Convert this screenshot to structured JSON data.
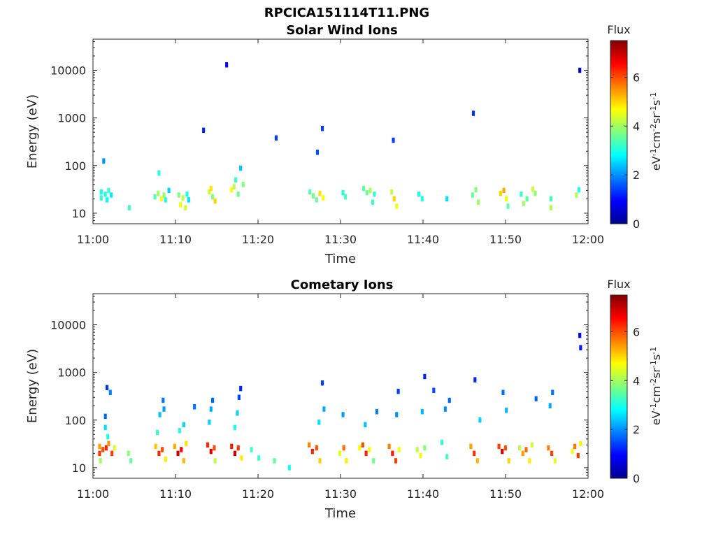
{
  "figure_title": "RPCICA151114T11.PNG",
  "chart_data": [
    {
      "type": "heatmap",
      "title": "Solar Wind Ions",
      "xlabel": "Time",
      "ylabel": "Energy (eV)",
      "x_range": [
        "11:00",
        "12:00"
      ],
      "x_ticks": [
        "11:00",
        "11:10",
        "11:20",
        "11:30",
        "11:40",
        "11:50",
        "12:00"
      ],
      "y_scale": "log",
      "y_range": [
        6,
        45000
      ],
      "y_ticks": [
        "10",
        "100",
        "1000",
        "10000"
      ],
      "colorbar": {
        "label": "Flux",
        "units": "eV-1cm-2sr-1s-1",
        "ticks": [
          "0",
          "2",
          "4",
          "6"
        ],
        "range": [
          0,
          7.5
        ],
        "colormap": "jet"
      },
      "cells": [
        [
          1.0,
          12,
          0,
          28,
          2.9
        ],
        [
          1.0,
          12,
          0,
          21,
          3.1
        ],
        [
          1.3,
          12,
          0,
          125,
          2.0
        ],
        [
          1.5,
          12,
          0,
          25,
          3.0
        ],
        [
          1.7,
          12,
          0,
          19,
          2.8
        ],
        [
          1.9,
          12,
          0,
          30,
          3.2
        ],
        [
          2.2,
          12,
          0,
          24,
          2.7
        ],
        [
          4.4,
          12,
          0,
          13,
          3.3
        ],
        [
          7.5,
          12,
          0,
          22,
          3.4
        ],
        [
          7.9,
          12,
          0,
          26,
          4.0
        ],
        [
          8.0,
          12,
          0,
          70,
          3.0
        ],
        [
          8.3,
          12,
          0,
          20,
          4.6
        ],
        [
          8.6,
          12,
          0,
          24,
          3.9
        ],
        [
          8.8,
          12,
          0,
          19,
          3.0
        ],
        [
          9.2,
          12,
          0,
          30,
          2.5
        ],
        [
          10.4,
          12,
          0,
          24,
          3.8
        ],
        [
          10.6,
          12,
          0,
          15,
          4.6
        ],
        [
          10.9,
          12,
          0,
          21,
          4.2
        ],
        [
          11.2,
          12,
          0,
          13,
          4.4
        ],
        [
          11.4,
          12,
          0,
          25,
          3.0
        ],
        [
          11.6,
          12,
          0,
          19,
          2.6
        ],
        [
          13.4,
          12,
          0,
          550,
          1.2
        ],
        [
          14.1,
          12,
          0,
          28,
          4.3
        ],
        [
          14.3,
          12,
          0,
          33,
          4.9
        ],
        [
          14.5,
          12,
          0,
          22,
          3.8
        ],
        [
          14.8,
          12,
          0,
          18,
          5.0
        ],
        [
          16.2,
          12,
          0,
          13000,
          1.0
        ],
        [
          16.8,
          12,
          0,
          31,
          4.7
        ],
        [
          17.1,
          12,
          0,
          36,
          4.2
        ],
        [
          17.3,
          12,
          0,
          50,
          3.2
        ],
        [
          17.6,
          12,
          0,
          25,
          3.6
        ],
        [
          17.9,
          12,
          0,
          88,
          2.4
        ],
        [
          18.2,
          12,
          0,
          40,
          3.8
        ],
        [
          22.2,
          12,
          0,
          380,
          1.4
        ],
        [
          27.2,
          12,
          0,
          190,
          1.5
        ],
        [
          26.3,
          12,
          0,
          28,
          3.4
        ],
        [
          26.7,
          12,
          0,
          23,
          3.7
        ],
        [
          27.1,
          12,
          0,
          19,
          3.6
        ],
        [
          27.5,
          12,
          0,
          26,
          4.9
        ],
        [
          27.8,
          12,
          0,
          600,
          1.4
        ],
        [
          27.9,
          12,
          0,
          21,
          4.7
        ],
        [
          30.3,
          12,
          0,
          27,
          3.1
        ],
        [
          30.6,
          12,
          0,
          22,
          3.3
        ],
        [
          32.8,
          12,
          0,
          33,
          3.5
        ],
        [
          33.2,
          12,
          0,
          27,
          3.6
        ],
        [
          33.6,
          12,
          0,
          30,
          4.1
        ],
        [
          34.1,
          12,
          0,
          25,
          3.2
        ],
        [
          33.9,
          12,
          0,
          17,
          3.2
        ],
        [
          36.4,
          12,
          0,
          340,
          1.4
        ],
        [
          36.2,
          12,
          0,
          28,
          4.2
        ],
        [
          36.5,
          12,
          0,
          20,
          5.0
        ],
        [
          36.8,
          12,
          0,
          14,
          4.6
        ],
        [
          39.5,
          12,
          0,
          25,
          3.0
        ],
        [
          39.9,
          12,
          0,
          20,
          3.0
        ],
        [
          42.9,
          12,
          0,
          20,
          2.6
        ],
        [
          46.1,
          12,
          0,
          1250,
          1.3
        ],
        [
          46.0,
          12,
          0,
          24,
          3.6
        ],
        [
          46.4,
          12,
          0,
          31,
          3.8
        ],
        [
          46.7,
          12,
          0,
          17,
          4.0
        ],
        [
          49.4,
          12,
          0,
          26,
          5.0
        ],
        [
          49.8,
          12,
          0,
          30,
          5.3
        ],
        [
          50.1,
          12,
          0,
          20,
          4.6
        ],
        [
          50.3,
          12,
          0,
          14,
          3.5
        ],
        [
          51.9,
          12,
          0,
          25,
          3.2
        ],
        [
          52.2,
          12,
          0,
          16,
          4.0
        ],
        [
          52.6,
          12,
          0,
          20,
          3.5
        ],
        [
          53.3,
          12,
          0,
          32,
          4.3
        ],
        [
          53.6,
          12,
          0,
          26,
          3.9
        ],
        [
          55.5,
          12,
          0,
          20,
          3.3
        ],
        [
          55.5,
          12,
          0,
          13,
          4.1
        ],
        [
          58.6,
          12,
          0,
          24,
          4.1
        ],
        [
          58.9,
          12,
          0,
          31,
          3.0
        ],
        [
          59.0,
          12,
          0,
          10000,
          0.5
        ]
      ]
    },
    {
      "type": "heatmap",
      "title": "Cometary Ions",
      "xlabel": "Time",
      "ylabel": "Energy (eV)",
      "x_range": [
        "11:00",
        "12:00"
      ],
      "x_ticks": [
        "11:00",
        "11:10",
        "11:20",
        "11:30",
        "11:40",
        "11:50",
        "12:00"
      ],
      "y_scale": "log",
      "y_range": [
        6,
        45000
      ],
      "y_ticks": [
        "10",
        "100",
        "1000",
        "10000"
      ],
      "colorbar": {
        "label": "Flux",
        "units": "eV-1cm-2sr-1s-1",
        "ticks": [
          "0",
          "2",
          "4",
          "6"
        ],
        "range": [
          0,
          7.5
        ],
        "colormap": "jet"
      },
      "cells": [
        [
          0.8,
          12,
          0,
          28,
          5.4
        ],
        [
          0.8,
          12,
          0,
          20,
          6.2
        ],
        [
          0.9,
          12,
          0,
          14,
          4.0
        ],
        [
          1.2,
          12,
          0,
          24,
          6.0
        ],
        [
          1.6,
          12,
          0,
          26,
          6.3
        ],
        [
          1.9,
          12,
          0,
          32,
          5.5
        ],
        [
          2.3,
          12,
          0,
          20,
          6.1
        ],
        [
          2.6,
          12,
          0,
          26,
          4.4
        ],
        [
          1.5,
          12,
          0,
          70,
          2.6
        ],
        [
          1.8,
          12,
          0,
          45,
          3.0
        ],
        [
          1.5,
          12,
          0,
          120,
          1.7
        ],
        [
          1.7,
          12,
          0,
          480,
          1.3
        ],
        [
          2.1,
          12,
          0,
          380,
          1.9
        ],
        [
          4.3,
          12,
          0,
          20,
          3.8
        ],
        [
          4.6,
          12,
          0,
          14,
          3.5
        ],
        [
          7.6,
          12,
          0,
          28,
          5.1
        ],
        [
          8.0,
          12,
          0,
          20,
          6.3
        ],
        [
          8.4,
          12,
          0,
          24,
          6.0
        ],
        [
          8.8,
          12,
          0,
          15,
          4.8
        ],
        [
          7.8,
          12,
          0,
          55,
          3.2
        ],
        [
          8.1,
          12,
          0,
          130,
          2.4
        ],
        [
          8.6,
          12,
          0,
          170,
          2.1
        ],
        [
          8.5,
          12,
          0,
          260,
          1.8
        ],
        [
          9.9,
          12,
          0,
          28,
          5.3
        ],
        [
          10.3,
          12,
          0,
          20,
          6.9
        ],
        [
          10.7,
          12,
          0,
          24,
          6.6
        ],
        [
          11.0,
          12,
          0,
          14,
          5.2
        ],
        [
          11.3,
          12,
          0,
          32,
          4.9
        ],
        [
          10.5,
          12,
          0,
          60,
          3.1
        ],
        [
          11.0,
          12,
          0,
          80,
          2.5
        ],
        [
          12.3,
          12,
          0,
          190,
          1.8
        ],
        [
          13.9,
          12,
          0,
          30,
          6.3
        ],
        [
          14.3,
          12,
          0,
          22,
          6.8
        ],
        [
          14.7,
          12,
          0,
          26,
          6.0
        ],
        [
          14.8,
          12,
          0,
          14,
          4.2
        ],
        [
          14.1,
          12,
          0,
          90,
          2.5
        ],
        [
          14.3,
          12,
          0,
          170,
          2.2
        ],
        [
          14.5,
          12,
          0,
          260,
          1.7
        ],
        [
          16.8,
          12,
          0,
          28,
          6.4
        ],
        [
          17.2,
          12,
          0,
          20,
          6.9
        ],
        [
          17.6,
          12,
          0,
          26,
          6.2
        ],
        [
          18.0,
          12,
          0,
          16,
          4.8
        ],
        [
          17.2,
          12,
          0,
          70,
          3.0
        ],
        [
          17.5,
          12,
          0,
          140,
          2.5
        ],
        [
          17.7,
          12,
          0,
          300,
          1.5
        ],
        [
          17.9,
          12,
          0,
          460,
          1.2
        ],
        [
          19.2,
          12,
          0,
          24,
          3.3
        ],
        [
          20.1,
          12,
          0,
          16,
          3.2
        ],
        [
          22.0,
          12,
          0,
          14,
          3.5
        ],
        [
          23.8,
          12,
          0,
          10,
          2.9
        ],
        [
          26.2,
          12,
          0,
          30,
          5.6
        ],
        [
          26.6,
          12,
          0,
          22,
          6.3
        ],
        [
          27.1,
          12,
          0,
          26,
          6.0
        ],
        [
          27.5,
          12,
          0,
          14,
          5.0
        ],
        [
          27.8,
          12,
          0,
          600,
          1.4
        ],
        [
          28.0,
          12,
          0,
          170,
          2.2
        ],
        [
          27.4,
          12,
          0,
          90,
          2.6
        ],
        [
          29.9,
          12,
          0,
          20,
          4.5
        ],
        [
          30.4,
          12,
          0,
          26,
          5.8
        ],
        [
          30.7,
          12,
          0,
          14,
          4.8
        ],
        [
          30.3,
          12,
          0,
          130,
          2.1
        ],
        [
          32.3,
          12,
          0,
          26,
          4.7
        ],
        [
          32.7,
          12,
          0,
          30,
          6.0
        ],
        [
          33.1,
          12,
          0,
          20,
          6.3
        ],
        [
          33.5,
          12,
          0,
          24,
          4.6
        ],
        [
          34.0,
          12,
          0,
          14,
          3.6
        ],
        [
          33.0,
          12,
          0,
          80,
          2.4
        ],
        [
          34.4,
          12,
          0,
          150,
          1.9
        ],
        [
          35.9,
          12,
          0,
          28,
          5.6
        ],
        [
          36.3,
          12,
          0,
          20,
          6.4
        ],
        [
          36.7,
          12,
          0,
          14,
          6.1
        ],
        [
          37.1,
          12,
          0,
          24,
          4.6
        ],
        [
          36.8,
          12,
          0,
          130,
          2.0
        ],
        [
          37.0,
          12,
          0,
          400,
          1.4
        ],
        [
          39.3,
          12,
          0,
          24,
          4.2
        ],
        [
          39.7,
          12,
          0,
          18,
          4.6
        ],
        [
          40.2,
          12,
          0,
          26,
          3.8
        ],
        [
          39.9,
          12,
          0,
          150,
          2.3
        ],
        [
          40.2,
          12,
          0,
          820,
          1.2
        ],
        [
          41.3,
          12,
          0,
          420,
          1.5
        ],
        [
          42.3,
          12,
          0,
          34,
          3.1
        ],
        [
          42.9,
          12,
          0,
          17,
          3.3
        ],
        [
          42.7,
          12,
          0,
          170,
          2.0
        ],
        [
          43.2,
          12,
          0,
          260,
          1.7
        ],
        [
          45.8,
          12,
          0,
          28,
          5.4
        ],
        [
          46.2,
          12,
          0,
          20,
          6.2
        ],
        [
          46.6,
          12,
          0,
          14,
          5.2
        ],
        [
          46.3,
          12,
          0,
          700,
          1.2
        ],
        [
          46.9,
          12,
          0,
          100,
          2.5
        ],
        [
          49.2,
          12,
          0,
          28,
          6.1
        ],
        [
          49.6,
          12,
          0,
          22,
          6.9
        ],
        [
          50.0,
          12,
          0,
          26,
          6.0
        ],
        [
          50.4,
          12,
          0,
          14,
          5.0
        ],
        [
          49.7,
          12,
          0,
          380,
          1.8
        ],
        [
          50.1,
          12,
          0,
          160,
          2.3
        ],
        [
          51.7,
          12,
          0,
          26,
          4.2
        ],
        [
          52.1,
          12,
          0,
          20,
          5.4
        ],
        [
          52.5,
          12,
          0,
          24,
          5.8
        ],
        [
          52.9,
          12,
          0,
          14,
          4.8
        ],
        [
          53.2,
          12,
          0,
          30,
          4.3
        ],
        [
          53.7,
          12,
          0,
          280,
          1.7
        ],
        [
          55.2,
          12,
          0,
          26,
          5.6
        ],
        [
          55.6,
          12,
          0,
          20,
          6.1
        ],
        [
          56.0,
          12,
          0,
          14,
          4.5
        ],
        [
          55.4,
          12,
          0,
          200,
          2.2
        ],
        [
          55.7,
          12,
          0,
          380,
          1.8
        ],
        [
          58.1,
          12,
          0,
          22,
          4.6
        ],
        [
          58.4,
          12,
          0,
          28,
          5.7
        ],
        [
          58.8,
          12,
          0,
          18,
          6.1
        ],
        [
          59.1,
          12,
          0,
          32,
          4.8
        ],
        [
          59.0,
          12,
          0,
          6000,
          0.9
        ],
        [
          59.1,
          12,
          0,
          3300,
          1.1
        ]
      ]
    }
  ]
}
